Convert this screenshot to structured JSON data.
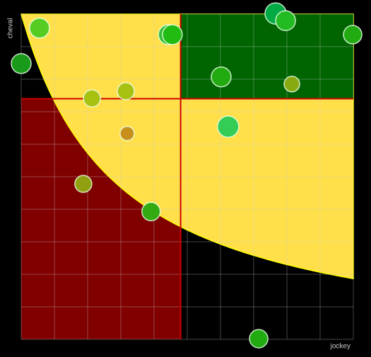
{
  "chart_data": {
    "type": "scatter",
    "x_label": "jockey",
    "y_label": "cheval",
    "xlim": [
      0,
      10
    ],
    "ylim": [
      0,
      10
    ],
    "xticks": [
      0,
      1,
      2,
      3,
      4,
      5,
      6,
      7,
      8,
      9,
      10
    ],
    "yticks": [
      0,
      1,
      2,
      3,
      4,
      5,
      6,
      7,
      8,
      9,
      10
    ],
    "grid": true,
    "quadrant_lines": {
      "x": 4.8,
      "y": 7.4
    },
    "x": [
      0.55,
      0,
      2.13,
      3.15,
      3.19,
      1.87,
      3.91,
      4.43,
      4.55,
      7.66,
      7.96,
      9.98,
      6.02,
      8.15,
      6.23,
      7.15
    ],
    "values": [
      9.57,
      8.48,
      7.41,
      7.63,
      6.33,
      4.78,
      3.93,
      9.37,
      9.37,
      10.02,
      9.8,
      9.37,
      8.07,
      7.85,
      6.54,
      0.02
    ],
    "sizes": [
      14,
      14,
      12,
      12,
      10,
      12,
      13,
      14,
      14,
      15,
      14,
      13,
      14,
      11,
      15,
      13
    ],
    "colors": [
      "#55cc22",
      "#1a9a1a",
      "#a8c010",
      "#a8c010",
      "#c8901a",
      "#90a010",
      "#33aa11",
      "#33bb33",
      "#22bb11",
      "#00aa44",
      "#22bb22",
      "#22aa11",
      "#22aa11",
      "#88aa11",
      "#33cc55",
      "#22aa11"
    ]
  }
}
